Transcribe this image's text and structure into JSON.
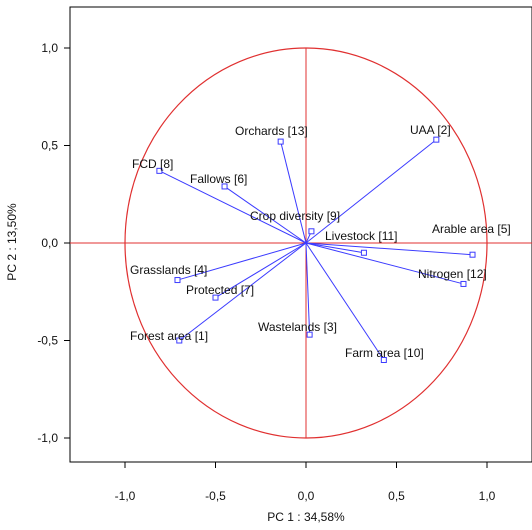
{
  "chart_data": {
    "type": "scatter",
    "subtype": "pca-correlation-circle",
    "title": "",
    "xlabel": "PC 1 : 34,58%",
    "ylabel": "PC 2 : 13,50%",
    "xlim": [
      -1.2,
      1.25
    ],
    "ylim": [
      -1.2,
      1.2
    ],
    "xticks": [
      "-1,0",
      "-0,5",
      "0,0",
      "0,5",
      "1,0"
    ],
    "yticks": [
      "1,0",
      "0,5",
      "0,0",
      "-0,5",
      "-1,0"
    ],
    "grid": false,
    "unit_circle": true,
    "points": [
      {
        "label": "Orchards [13]",
        "x": -0.14,
        "y": 0.52
      },
      {
        "label": "UAA [2]",
        "x": 0.72,
        "y": 0.53
      },
      {
        "label": "FCD [8]",
        "x": -0.81,
        "y": 0.37
      },
      {
        "label": "Fallows [6]",
        "x": -0.45,
        "y": 0.29
      },
      {
        "label": "Crop diversity [9]",
        "x": 0.03,
        "y": 0.06
      },
      {
        "label": "Livestock [11]",
        "x": 0.32,
        "y": -0.05
      },
      {
        "label": "Arable area [5]",
        "x": 0.92,
        "y": -0.06
      },
      {
        "label": "Nitrogen [12]",
        "x": 0.87,
        "y": -0.21
      },
      {
        "label": "Grasslands [4]",
        "x": -0.71,
        "y": -0.19
      },
      {
        "label": "Protected [7]",
        "x": -0.5,
        "y": -0.28
      },
      {
        "label": "Forest area [1]",
        "x": -0.7,
        "y": -0.5
      },
      {
        "label": "Wastelands [3]",
        "x": 0.02,
        "y": -0.47
      },
      {
        "label": "Farm area [10]",
        "x": 0.43,
        "y": -0.6
      }
    ],
    "colors": {
      "vectors": "#3b3bff",
      "circle": "#e03030",
      "axes": "#e03030",
      "frame": "#000000"
    }
  }
}
